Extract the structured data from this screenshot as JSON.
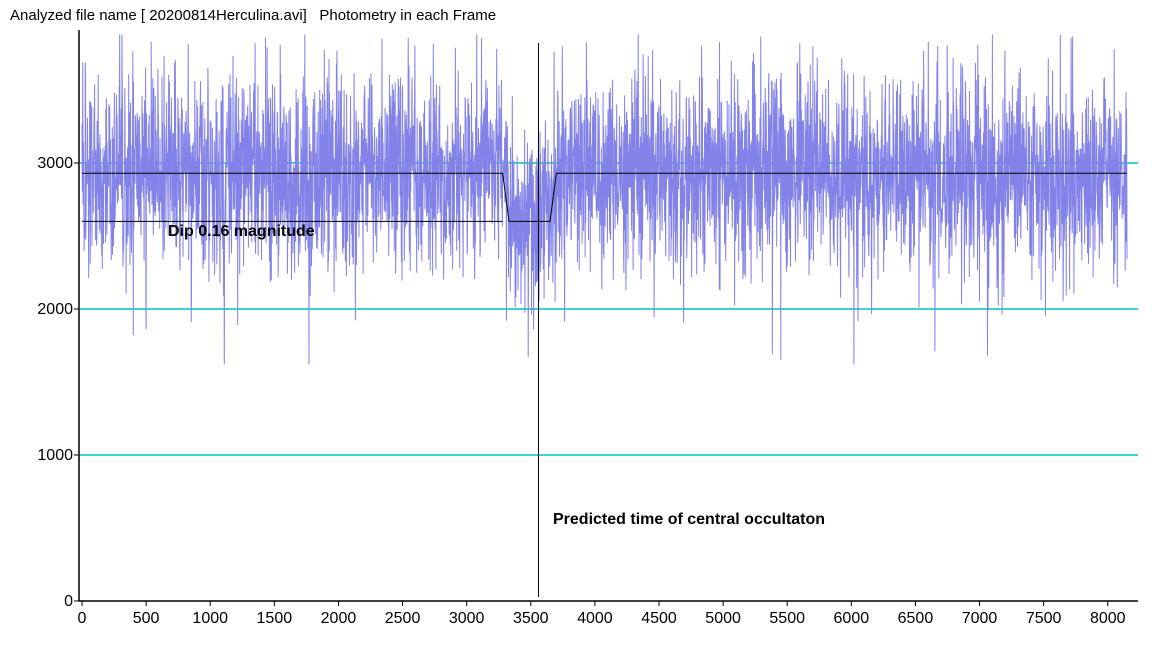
{
  "window": {
    "title_left": "Analyzed file name [ 20200814Herculina.avi]",
    "title_right": "Photometry in each Frame"
  },
  "colors": {
    "series": "#8282e8",
    "gridline": "#3cd2d2",
    "axis": "#000000",
    "annotation": "#000000"
  },
  "chart_data": {
    "type": "line",
    "title": "",
    "xlabel": "",
    "ylabel": "",
    "xlim": [
      0,
      8200
    ],
    "ylim": [
      0,
      3800
    ],
    "x_ticks": [
      0,
      500,
      1000,
      1500,
      2000,
      2500,
      3000,
      3500,
      4000,
      4500,
      5000,
      5500,
      6000,
      6500,
      7000,
      7500,
      8000
    ],
    "x_tick_labels": [
      "0",
      "500",
      "1000",
      "1500",
      "2000",
      "2500",
      "3000",
      "3500",
      "4000",
      "4500",
      "5000",
      "5500",
      "6000",
      "6500",
      "7000",
      "7500",
      "8000"
    ],
    "y_ticks": [
      0,
      1000,
      2000,
      3000
    ],
    "y_tick_labels": [
      "0",
      "1000",
      "2000",
      "3000"
    ],
    "gridlines_y": [
      1000,
      2000,
      3000
    ],
    "series": [
      {
        "noise_profile": {
          "frames": 8150,
          "mean_baseline": 2930,
          "mean_dip": 2600,
          "std": 330,
          "spike_max": 3880,
          "spike_min": 1620
        },
        "notable_extremes": [
          {
            "x": 400,
            "y": 1820
          },
          {
            "x": 500,
            "y": 1860
          },
          {
            "x": 540,
            "y": 3830
          },
          {
            "x": 1350,
            "y": 3820
          },
          {
            "x": 2340,
            "y": 3850
          },
          {
            "x": 3310,
            "y": 1920
          },
          {
            "x": 5450,
            "y": 1650
          },
          {
            "x": 5700,
            "y": 3800
          },
          {
            "x": 6020,
            "y": 1620
          },
          {
            "x": 6600,
            "y": 3830
          },
          {
            "x": 7100,
            "y": 3880
          },
          {
            "x": 8050,
            "y": 3780
          }
        ]
      }
    ],
    "model_fit": {
      "baseline_level": 2930,
      "dip_level": 2600,
      "ingress_start": 3280,
      "ingress_end": 3330,
      "egress_start": 3650,
      "egress_end": 3700,
      "x_end": 8150,
      "reference_line_x_start": 0,
      "reference_line_x_end": 3280
    },
    "predicted_time_x": 3560,
    "annotations": [
      {
        "text": "Dip 0.16 magnitude"
      },
      {
        "text": "Predicted time of central occultaton"
      }
    ]
  }
}
